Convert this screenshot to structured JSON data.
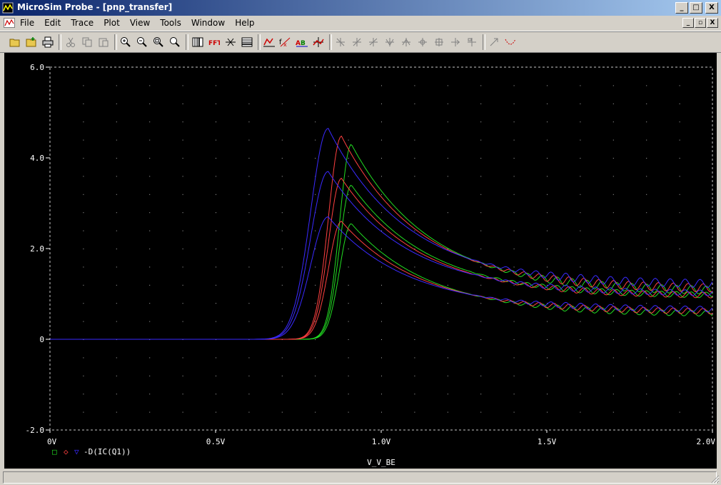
{
  "window": {
    "title": "MicroSim Probe - [pnp_transfer]",
    "minimize": "_",
    "maximize": "□",
    "close": "X",
    "restore": "▫"
  },
  "menu": [
    "File",
    "Edit",
    "Trace",
    "Plot",
    "View",
    "Tools",
    "Window",
    "Help"
  ],
  "toolbar_icons": [
    "open-folder-icon",
    "open-append-icon",
    "print-icon",
    "cut-icon",
    "copy-icon",
    "paste-icon",
    "zoom-in-icon",
    "zoom-out-icon",
    "zoom-area-icon",
    "zoom-fit-icon",
    "log-x-icon",
    "fft-icon",
    "performance-icon",
    "log-y-icon",
    "add-trace-icon",
    "eval-goal-icon",
    "label-icon",
    "toggle-cursor-icon",
    "cursor-peak-icon",
    "cursor-trough-icon",
    "cursor-slope-icon",
    "cursor-min-icon",
    "cursor-max-icon",
    "cursor-point-icon",
    "cursor-search-icon",
    "cursor-next-icon",
    "cursor-label-icon",
    "mark-label-icon",
    "mark-data-icon"
  ],
  "colors": {
    "series1": "#22dd22",
    "series2": "#ff4040",
    "series3": "#3a2aff",
    "axis": "#ffffff"
  },
  "chart_data": {
    "type": "line",
    "xlabel": "V_V_BE",
    "legend_text": "-D(IC(Q1))",
    "legend_markers": [
      "□",
      "◇",
      "▽"
    ],
    "x_ticks": [
      "0V",
      "0.5V",
      "1.0V",
      "1.5V",
      "2.0V"
    ],
    "y_ticks": [
      "6.0",
      "4.0",
      "2.0",
      "0",
      "-2.0"
    ],
    "xlim": [
      0,
      2.0
    ],
    "ylim": [
      -2.0,
      6.0
    ],
    "grid": true,
    "series": [
      {
        "color": "#22dd22",
        "peak_x": 0.91,
        "peaks": [
          4.3,
          3.4,
          2.55
        ],
        "tails": [
          1.05,
          0.95,
          0.55
        ],
        "rise_w": 0.05
      },
      {
        "color": "#ff4040",
        "peak_x": 0.88,
        "peaks": [
          4.48,
          3.55,
          2.6
        ],
        "tails": [
          1.1,
          0.95,
          0.6
        ],
        "rise_w": 0.055
      },
      {
        "color": "#3a2aff",
        "peak_x": 0.84,
        "peaks": [
          4.65,
          3.7,
          2.7
        ],
        "tails": [
          1.2,
          1.0,
          0.65
        ],
        "rise_w": 0.075
      }
    ]
  }
}
